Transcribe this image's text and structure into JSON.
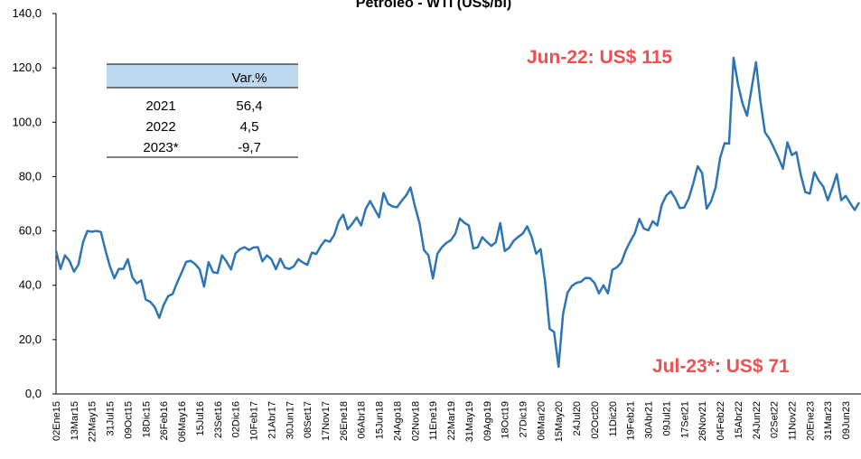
{
  "chart_data": {
    "type": "line",
    "title": "Petróleo - WTI (US$/bl)",
    "color": "#2e75b6",
    "ylim": [
      0,
      140
    ],
    "yticks": [
      {
        "value": 0,
        "label": "0,0"
      },
      {
        "value": 20,
        "label": "20,0"
      },
      {
        "value": 40,
        "label": "40,0"
      },
      {
        "value": 60,
        "label": "60,0"
      },
      {
        "value": 80,
        "label": "80,0"
      },
      {
        "value": 100,
        "label": "100,0"
      },
      {
        "value": 120,
        "label": "120,0"
      },
      {
        "value": 140,
        "label": "140,0"
      }
    ],
    "annotations": [
      "Jun-22: US$ 115",
      "Jul-23*: US$ 71"
    ],
    "table": {
      "column": "Var.%",
      "rows": [
        [
          "2021",
          "56,4"
        ],
        [
          "2022",
          "4,5"
        ],
        [
          "2023*",
          "-9,7"
        ]
      ]
    },
    "categories": [
      "02Ene15",
      null,
      null,
      null,
      "13Mar15",
      null,
      null,
      null,
      "22May15",
      null,
      null,
      null,
      "31Jul15",
      null,
      null,
      null,
      "09Oct15",
      null,
      null,
      null,
      "18Dic15",
      null,
      null,
      null,
      "26Feb16",
      null,
      null,
      null,
      "06May16",
      null,
      null,
      null,
      "15Jul16",
      null,
      null,
      null,
      "23Set16",
      null,
      null,
      null,
      "02Dic16",
      null,
      null,
      null,
      "10Feb17",
      null,
      null,
      null,
      "21Abr17",
      null,
      null,
      null,
      "30Jun17",
      null,
      null,
      null,
      "08Set17",
      null,
      null,
      null,
      "17Nov17",
      null,
      null,
      null,
      "26Ene18",
      null,
      null,
      null,
      "06Abr18",
      null,
      null,
      null,
      "15Jun18",
      null,
      null,
      null,
      "24Ago18",
      null,
      null,
      null,
      "02Nov18",
      null,
      null,
      null,
      "11Ene19",
      null,
      null,
      null,
      "22Mar19",
      null,
      null,
      null,
      "31May19",
      null,
      null,
      null,
      "09Ago19",
      null,
      null,
      null,
      "18Oct19",
      null,
      null,
      null,
      "27Dic19",
      null,
      null,
      null,
      "06Mar20",
      null,
      null,
      null,
      "15May20",
      null,
      null,
      null,
      "24Jul20",
      null,
      null,
      null,
      "02Oct20",
      null,
      null,
      null,
      "11Dic20",
      null,
      null,
      null,
      "19Feb21",
      null,
      null,
      null,
      "30Abr21",
      null,
      null,
      null,
      "09Jul21",
      null,
      null,
      null,
      "17Set21",
      null,
      null,
      null,
      "26Nov21",
      null,
      null,
      null,
      "04Feb22",
      null,
      null,
      null,
      "15Abr22",
      null,
      null,
      null,
      "24Jun22",
      null,
      null,
      null,
      "02Set22",
      null,
      null,
      null,
      "11Nov22",
      null,
      null,
      null,
      "20Ene23",
      null,
      null,
      null,
      "31Mar23",
      null,
      null,
      null,
      "09Jun23",
      null,
      null,
      null
    ],
    "values": [
      52.7,
      46,
      51,
      49,
      45,
      47.6,
      55.7,
      60,
      59.7,
      60,
      59.6,
      53,
      47,
      42.6,
      46,
      46,
      49.6,
      43,
      40.7,
      41.8,
      34.7,
      33.9,
      32,
      28,
      32.8,
      36,
      36.8,
      41,
      44.7,
      48.6,
      49,
      47.8,
      45.9,
      39.5,
      48.5,
      44.8,
      44.5,
      51,
      48.7,
      45.8,
      51.7,
      53.3,
      54,
      53,
      53.9,
      54,
      48.8,
      51,
      49.6,
      45.9,
      49.8,
      46.5,
      46,
      47,
      49.6,
      48.4,
      47.5,
      52,
      51.5,
      54.4,
      56.6,
      56,
      58.5,
      63.6,
      66,
      60.6,
      62.6,
      65,
      62,
      68,
      71,
      68,
      65,
      74,
      70,
      69,
      68.7,
      71,
      73,
      76,
      69,
      63,
      53,
      51,
      42.5,
      51.6,
      54,
      55.6,
      56.6,
      59,
      64.6,
      63,
      62,
      53.5,
      54,
      57.7,
      56,
      54.5,
      55.8,
      62.9,
      52.6,
      53.8,
      56.4,
      57.8,
      59,
      61.7,
      57.8,
      51.6,
      53.3,
      41.3,
      24,
      22.8,
      10,
      29.4,
      37.3,
      39.8,
      40.9,
      41.3,
      42.7,
      42.6,
      40.9,
      37,
      40,
      37,
      45.7,
      46.6,
      48.4,
      52.9,
      56.2,
      59.2,
      64.4,
      60.9,
      60.2,
      63.6,
      62,
      69.6,
      73,
      74.6,
      72,
      68.4,
      68.6,
      71.9,
      77.4,
      83.8,
      81.3,
      68.2,
      70.9,
      76,
      86.9,
      92.3,
      92.1,
      123.7,
      113.9,
      106.9,
      102.4,
      112.2,
      122.1,
      107.6,
      96.3,
      93.9,
      90.5,
      86.9,
      82.9,
      92.6,
      87.9,
      89,
      80.5,
      74.3,
      73.7,
      81.6,
      78.5,
      76.3,
      71.3,
      75.7,
      80.9,
      71.3,
      72.9,
      70.2,
      67.7,
      70.5
    ]
  }
}
